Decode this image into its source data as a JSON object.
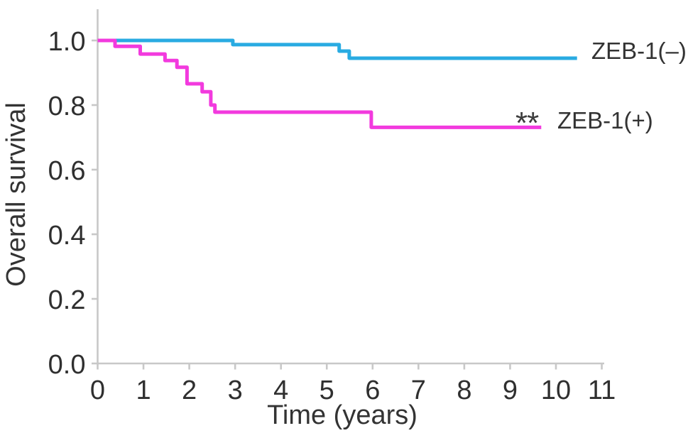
{
  "figure": {
    "background": "#ffffff"
  },
  "chart_data": {
    "type": "line",
    "subtype": "kaplan_meier_step",
    "title": "",
    "xlabel": "Time (years)",
    "ylabel": "Overall survival",
    "xlim": [
      0,
      11
    ],
    "ylim": [
      0.0,
      1.0
    ],
    "xticks": [
      "0",
      "1",
      "2",
      "3",
      "4",
      "5",
      "6",
      "7",
      "8",
      "9",
      "10",
      "11"
    ],
    "yticks": [
      "0.0",
      "0.2",
      "0.4",
      "0.6",
      "0.8",
      "1.0"
    ],
    "grid": false,
    "legend_position": "right-end-of-curves",
    "axis_color": "#c8c8c8",
    "text_color": "#333333",
    "significance_marker": "**",
    "series": [
      {
        "name": "ZEB-1(–)",
        "color": "#29abe2",
        "annotation": "",
        "steps": [
          [
            0,
            1.0
          ],
          [
            2.95,
            0.987
          ],
          [
            5.27,
            0.967
          ],
          [
            5.49,
            0.945
          ],
          [
            10.46,
            0.945
          ]
        ]
      },
      {
        "name": "ZEB-1(+)",
        "color": "#f23ade",
        "annotation": "**",
        "steps": [
          [
            0,
            1.0
          ],
          [
            0.38,
            0.982
          ],
          [
            0.93,
            0.958
          ],
          [
            1.47,
            0.938
          ],
          [
            1.73,
            0.917
          ],
          [
            1.95,
            0.866
          ],
          [
            2.28,
            0.841
          ],
          [
            2.47,
            0.8
          ],
          [
            2.56,
            0.778
          ],
          [
            5.97,
            0.731
          ],
          [
            9.68,
            0.731
          ]
        ]
      }
    ]
  }
}
